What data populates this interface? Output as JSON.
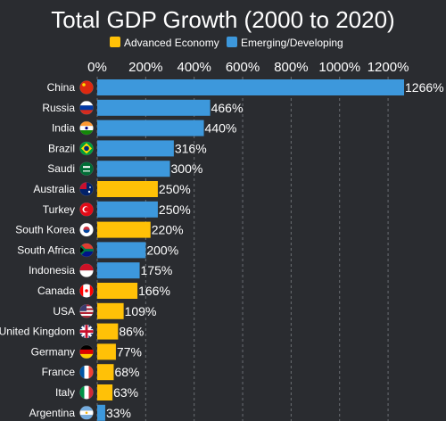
{
  "chart_data": {
    "type": "bar",
    "orientation": "horizontal",
    "title": "Total GDP Growth (2000 to 2020)",
    "xlabel": "",
    "ylabel": "",
    "xlim": [
      0,
      1266
    ],
    "x_ticks": [
      "0%",
      "200%",
      "400%",
      "600%",
      "800%",
      "1000%",
      "1200%"
    ],
    "x_tick_values": [
      0,
      200,
      400,
      600,
      800,
      1000,
      1200
    ],
    "grid": "vertical-dashed",
    "legend_position": "top",
    "legend": [
      {
        "label": "Advanced Economy",
        "color": "#ffc107"
      },
      {
        "label": "Emerging/Developing",
        "color": "#3d98dc"
      }
    ],
    "categories": [
      "China",
      "Russia",
      "India",
      "Brazil",
      "Saudi",
      "Australia",
      "Turkey",
      "South Korea",
      "South Africa",
      "Indonesia",
      "Canada",
      "USA",
      "United Kingdom",
      "Germany",
      "France",
      "Italy",
      "Argentina"
    ],
    "values": [
      1266,
      466,
      440,
      316,
      300,
      250,
      250,
      220,
      200,
      175,
      166,
      109,
      86,
      77,
      68,
      63,
      33
    ],
    "value_labels": [
      "1266%",
      "466%",
      "440%",
      "316%",
      "300%",
      "250%",
      "250%",
      "220%",
      "200%",
      "175%",
      "166%",
      "109%",
      "86%",
      "77%",
      "68%",
      "63%",
      "33%"
    ],
    "groups": [
      "Emerging/Developing",
      "Emerging/Developing",
      "Emerging/Developing",
      "Emerging/Developing",
      "Emerging/Developing",
      "Advanced Economy",
      "Emerging/Developing",
      "Advanced Economy",
      "Emerging/Developing",
      "Emerging/Developing",
      "Advanced Economy",
      "Advanced Economy",
      "Advanced Economy",
      "Advanced Economy",
      "Advanced Economy",
      "Advanced Economy",
      "Emerging/Developing"
    ],
    "flag_icons": [
      "china-flag-icon",
      "russia-flag-icon",
      "india-flag-icon",
      "brazil-flag-icon",
      "saudi-flag-icon",
      "australia-flag-icon",
      "turkey-flag-icon",
      "south-korea-flag-icon",
      "south-africa-flag-icon",
      "indonesia-flag-icon",
      "canada-flag-icon",
      "usa-flag-icon",
      "united-kingdom-flag-icon",
      "germany-flag-icon",
      "france-flag-icon",
      "italy-flag-icon",
      "argentina-flag-icon"
    ]
  },
  "colors": {
    "background": "#2a2c30",
    "text": "#ffffff",
    "grid": "#6b6e73",
    "advanced": "#ffc107",
    "emerging": "#3d98dc"
  }
}
